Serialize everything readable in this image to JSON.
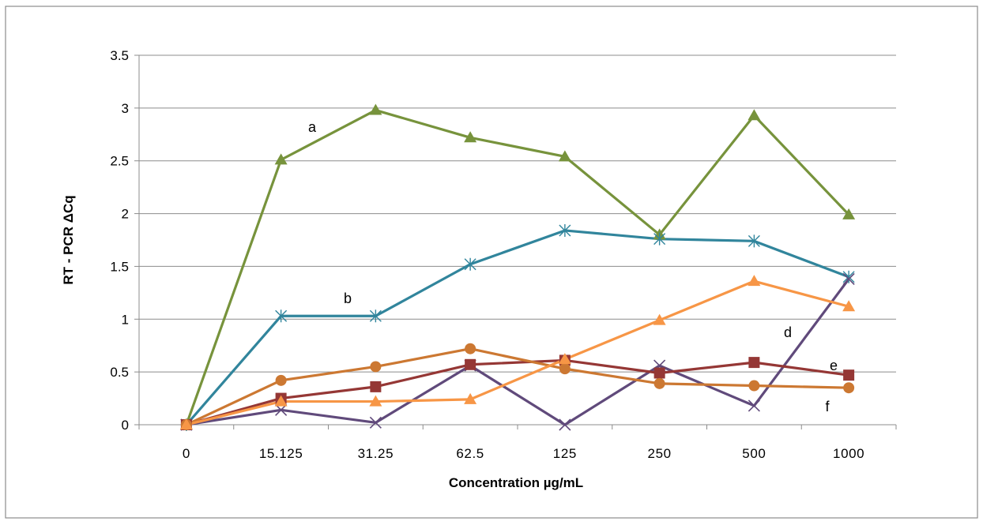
{
  "chart_data": {
    "type": "line",
    "title": "",
    "xlabel": "Concentration µg/mL",
    "ylabel": "RT - PCR  ΔCq",
    "categories": [
      "0",
      "15.125",
      "31.25",
      "62.5",
      "125",
      "250",
      "500",
      "1000"
    ],
    "yticks": [
      "0",
      "0.5",
      "1",
      "1.5",
      "2",
      "2.5",
      "3",
      "3.5"
    ],
    "ylim": [
      0,
      3.5
    ],
    "grid": "horizontal",
    "legend": "none",
    "series": [
      {
        "label": "a",
        "color": "#77933C",
        "marker": "triangle",
        "values": [
          0,
          2.51,
          2.98,
          2.72,
          2.54,
          1.8,
          2.93,
          1.99
        ]
      },
      {
        "label": "b",
        "color": "#31859C",
        "marker": "star",
        "values": [
          0,
          1.03,
          1.03,
          1.52,
          1.84,
          1.76,
          1.74,
          1.4
        ]
      },
      {
        "label": "d",
        "color": "#604A7B",
        "marker": "x",
        "values": [
          0,
          0.14,
          0.02,
          0.56,
          0.0,
          0.56,
          0.18,
          1.38
        ]
      },
      {
        "label": "e",
        "color": "#953735",
        "marker": "square",
        "values": [
          0,
          0.25,
          0.36,
          0.57,
          0.61,
          0.49,
          0.59,
          0.47
        ]
      },
      {
        "label": "f",
        "color": "#CC7832",
        "marker": "circle",
        "values": [
          0,
          0.42,
          0.55,
          0.72,
          0.53,
          0.39,
          0.37,
          0.35
        ]
      },
      {
        "label": "",
        "color": "#F79646",
        "marker": "triangle",
        "values": [
          0,
          0.22,
          0.22,
          0.24,
          0.62,
          0.99,
          1.36,
          1.12
        ]
      }
    ]
  }
}
